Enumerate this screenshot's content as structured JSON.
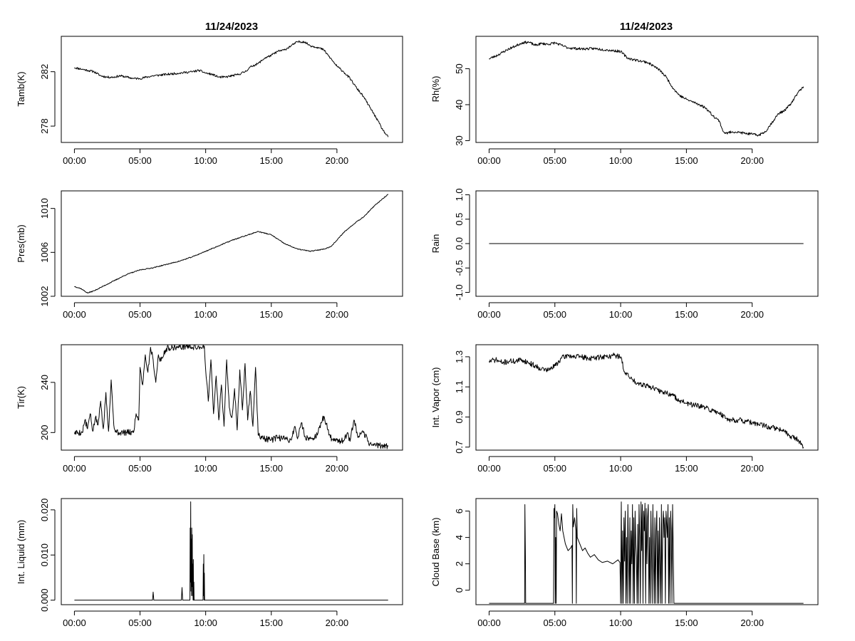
{
  "figure": {
    "date_title": "11/24/2023"
  },
  "chart_data": [
    {
      "id": "tamb",
      "type": "line",
      "title": "11/24/2023",
      "xlabel": "",
      "ylabel": "Tamb(K)",
      "xlim": [
        -1,
        25
      ],
      "ylim": [
        276.8,
        284.6
      ],
      "x_ticks": [
        0,
        5,
        10,
        15,
        20
      ],
      "x_tick_labels": [
        "00:00",
        "05:00",
        "10:00",
        "15:00",
        "20:00"
      ],
      "y_ticks": [
        278,
        282
      ],
      "y_tick_labels": [
        "278",
        "282"
      ],
      "noise": 0.08,
      "seed": 11,
      "x": [
        0,
        0.5,
        1,
        1.5,
        2,
        2.5,
        3,
        3.5,
        4,
        4.5,
        5,
        6,
        7,
        8,
        9,
        9.5,
        10,
        10.5,
        11,
        11.5,
        12,
        12.5,
        13,
        13.5,
        14,
        14.5,
        15,
        15.5,
        16,
        16.5,
        17,
        17.5,
        18,
        18.5,
        19,
        19.5,
        20,
        20.5,
        21,
        21.5,
        22,
        22.5,
        23,
        23.5,
        23.9
      ],
      "y": [
        282.3,
        282.2,
        282.1,
        282.0,
        281.7,
        281.6,
        281.6,
        281.7,
        281.6,
        281.5,
        281.5,
        281.7,
        281.8,
        281.9,
        282.0,
        282.1,
        281.9,
        281.8,
        281.6,
        281.6,
        281.7,
        281.8,
        282.0,
        282.4,
        282.6,
        283.0,
        283.2,
        283.5,
        283.6,
        283.9,
        284.2,
        284.2,
        283.9,
        283.8,
        283.6,
        283.0,
        282.4,
        282.0,
        281.5,
        280.8,
        280.2,
        279.4,
        278.6,
        277.7,
        277.2
      ]
    },
    {
      "id": "rh",
      "type": "line",
      "title": "11/24/2023",
      "xlabel": "",
      "ylabel": "Rh(%)",
      "xlim": [
        -1,
        25
      ],
      "ylim": [
        29.5,
        59
      ],
      "x_ticks": [
        0,
        5,
        10,
        15,
        20
      ],
      "x_tick_labels": [
        "00:00",
        "05:00",
        "10:00",
        "15:00",
        "20:00"
      ],
      "y_ticks": [
        30,
        40,
        50
      ],
      "y_tick_labels": [
        "30",
        "40",
        "50"
      ],
      "noise": 0.35,
      "seed": 23,
      "x": [
        0,
        0.5,
        1,
        1.5,
        2,
        2.5,
        3,
        3.5,
        4,
        4.5,
        5,
        6,
        7,
        8,
        9,
        10,
        10.5,
        11,
        12,
        12.5,
        13,
        13.5,
        14,
        14.5,
        15,
        16,
        16.5,
        17,
        17.5,
        17.8,
        18,
        18.5,
        19,
        19.5,
        20,
        20.5,
        21,
        21.5,
        22,
        22.5,
        23,
        23.5,
        23.9
      ],
      "y": [
        52.8,
        53.5,
        54.5,
        55.5,
        56.3,
        57.2,
        57.4,
        56.5,
        57.0,
        56.8,
        57.2,
        55.8,
        55.5,
        55.6,
        55.2,
        54.8,
        53.0,
        52.5,
        51.8,
        50.8,
        49.5,
        47.5,
        44.5,
        42.5,
        41.5,
        40.0,
        39.0,
        37.0,
        35.5,
        32.5,
        32.0,
        32.5,
        32.3,
        32.0,
        31.8,
        31.5,
        32.5,
        35.0,
        37.5,
        38.5,
        40.5,
        43.5,
        45.0
      ]
    },
    {
      "id": "pres",
      "type": "line",
      "title": "",
      "xlabel": "",
      "ylabel": "Pres(mb)",
      "xlim": [
        -1,
        25
      ],
      "ylim": [
        1002,
        1011.6
      ],
      "x_ticks": [
        0,
        5,
        10,
        15,
        20
      ],
      "x_tick_labels": [
        "00:00",
        "05:00",
        "10:00",
        "15:00",
        "20:00"
      ],
      "y_ticks": [
        1002,
        1006,
        1010
      ],
      "y_tick_labels": [
        "1002",
        "1006",
        "1010"
      ],
      "noise": 0.04,
      "seed": 37,
      "x": [
        0,
        0.5,
        1,
        1.5,
        2,
        2.5,
        3,
        3.5,
        4,
        4.5,
        5,
        6,
        7,
        8,
        9,
        10,
        11,
        12,
        13,
        13.5,
        14,
        15,
        16,
        17,
        18,
        19,
        19.5,
        20,
        20.5,
        21,
        21.5,
        22,
        22.5,
        23,
        23.5,
        23.9
      ],
      "y": [
        1002.9,
        1002.7,
        1002.3,
        1002.5,
        1002.8,
        1003.1,
        1003.4,
        1003.7,
        1004.0,
        1004.2,
        1004.4,
        1004.6,
        1004.9,
        1005.2,
        1005.6,
        1006.1,
        1006.6,
        1007.1,
        1007.5,
        1007.7,
        1007.9,
        1007.6,
        1006.8,
        1006.3,
        1006.1,
        1006.3,
        1006.5,
        1007.1,
        1007.8,
        1008.3,
        1008.8,
        1009.2,
        1009.8,
        1010.4,
        1010.9,
        1011.3
      ]
    },
    {
      "id": "rain",
      "type": "line",
      "title": "",
      "xlabel": "",
      "ylabel": "Rain",
      "xlim": [
        -1,
        25
      ],
      "ylim": [
        -1.08,
        1.08
      ],
      "x_ticks": [
        0,
        5,
        10,
        15,
        20
      ],
      "x_tick_labels": [
        "00:00",
        "05:00",
        "10:00",
        "15:00",
        "20:00"
      ],
      "y_ticks": [
        -1.0,
        -0.5,
        0.0,
        0.5,
        1.0
      ],
      "y_tick_labels": [
        "-1.0",
        "-0.5",
        "0.0",
        "0.5",
        "1.0"
      ],
      "noise": 0,
      "seed": 1,
      "x": [
        0,
        23.9
      ],
      "y": [
        0,
        0
      ]
    },
    {
      "id": "tir",
      "type": "line",
      "title": "",
      "xlabel": "",
      "ylabel": "Tir(K)",
      "xlim": [
        -1,
        25
      ],
      "ylim": [
        186,
        270
      ],
      "x_ticks": [
        0,
        5,
        10,
        15,
        20
      ],
      "x_tick_labels": [
        "00:00",
        "05:00",
        "10:00",
        "15:00",
        "20:00"
      ],
      "y_ticks": [
        200,
        240
      ],
      "y_tick_labels": [
        "200",
        "240"
      ],
      "noise": 2.5,
      "seed": 5,
      "x": [
        0,
        0.6,
        0.8,
        1.0,
        1.2,
        1.4,
        1.6,
        1.8,
        2.0,
        2.2,
        2.4,
        2.6,
        2.8,
        3.0,
        3.2,
        3.5,
        4.0,
        4.5,
        4.7,
        4.9,
        5.0,
        5.2,
        5.4,
        5.6,
        5.8,
        6.0,
        6.2,
        6.4,
        6.6,
        7.0,
        7.5,
        8.0,
        8.5,
        9.0,
        9.5,
        9.9,
        10.0,
        10.2,
        10.4,
        10.6,
        10.8,
        11.0,
        11.2,
        11.4,
        11.6,
        11.8,
        12.0,
        12.2,
        12.4,
        12.6,
        12.8,
        13.0,
        13.2,
        13.4,
        13.6,
        13.8,
        14.0,
        14.5,
        15.0,
        15.5,
        16.0,
        16.5,
        16.8,
        17.0,
        17.3,
        17.6,
        18.0,
        18.5,
        19.0,
        19.5,
        20.0,
        20.5,
        20.8,
        21.0,
        21.3,
        21.6,
        22.0,
        22.5,
        23.0,
        23.9
      ],
      "y": [
        200,
        200,
        210,
        203,
        215,
        201,
        212,
        206,
        225,
        203,
        232,
        201,
        242,
        206,
        200,
        200,
        200,
        200,
        215,
        210,
        252,
        238,
        262,
        248,
        268,
        258,
        240,
        262,
        257,
        267,
        268,
        268,
        269,
        268,
        268,
        269,
        250,
        225,
        258,
        215,
        245,
        210,
        238,
        205,
        258,
        220,
        212,
        235,
        202,
        250,
        218,
        255,
        210,
        233,
        205,
        252,
        198,
        195,
        194,
        196,
        195,
        194,
        205,
        195,
        208,
        196,
        195,
        198,
        213,
        196,
        194,
        193,
        200,
        193,
        210,
        196,
        200,
        191,
        190,
        189
      ]
    },
    {
      "id": "vapor",
      "type": "line",
      "title": "",
      "xlabel": "",
      "ylabel": "Int. Vapor (cm)",
      "xlim": [
        -1,
        25
      ],
      "ylim": [
        0.68,
        1.38
      ],
      "x_ticks": [
        0,
        5,
        10,
        15,
        20
      ],
      "x_tick_labels": [
        "00:00",
        "05:00",
        "10:00",
        "15:00",
        "20:00"
      ],
      "y_ticks": [
        0.7,
        0.9,
        1.1,
        1.3
      ],
      "y_tick_labels": [
        "0.7",
        "0.9",
        "1.1",
        "1.3"
      ],
      "noise": 0.018,
      "seed": 71,
      "x": [
        0,
        0.5,
        1,
        1.5,
        2,
        2.5,
        3,
        3.5,
        4,
        4.5,
        5,
        5.5,
        6,
        6.5,
        7,
        7.5,
        8,
        8.5,
        9,
        9.5,
        10,
        10.3,
        10.6,
        11,
        11.5,
        12,
        12.5,
        13,
        13.5,
        14,
        14.5,
        15,
        15.5,
        16,
        16.5,
        17,
        17.5,
        18,
        18.5,
        19,
        19.5,
        20,
        20.5,
        21,
        21.5,
        22,
        22.5,
        23,
        23.5,
        23.9
      ],
      "y": [
        1.27,
        1.28,
        1.26,
        1.27,
        1.27,
        1.28,
        1.26,
        1.24,
        1.22,
        1.21,
        1.24,
        1.29,
        1.31,
        1.3,
        1.3,
        1.29,
        1.29,
        1.3,
        1.3,
        1.31,
        1.3,
        1.2,
        1.17,
        1.14,
        1.12,
        1.11,
        1.09,
        1.07,
        1.06,
        1.04,
        1.01,
        0.99,
        0.98,
        0.97,
        0.96,
        0.94,
        0.93,
        0.89,
        0.88,
        0.88,
        0.87,
        0.86,
        0.85,
        0.84,
        0.83,
        0.82,
        0.8,
        0.77,
        0.75,
        0.7
      ]
    },
    {
      "id": "liquid",
      "type": "line",
      "title": "",
      "xlabel": "",
      "ylabel": "Int. Liquid (mm)",
      "xlim": [
        -1,
        25
      ],
      "ylim": [
        -0.001,
        0.0225
      ],
      "x_ticks": [
        0,
        5,
        10,
        15,
        20
      ],
      "x_tick_labels": [
        "00:00",
        "05:00",
        "10:00",
        "15:00",
        "20:00"
      ],
      "y_ticks": [
        0.0,
        0.01,
        0.02
      ],
      "y_tick_labels": [
        "0.000",
        "0.010",
        "0.020"
      ],
      "noise": 0,
      "seed": 1,
      "x": [
        0,
        5.95,
        6.0,
        6.05,
        8.15,
        8.2,
        8.25,
        8.8,
        8.82,
        8.84,
        8.86,
        8.88,
        8.9,
        8.92,
        8.94,
        8.96,
        8.98,
        9.0,
        9.02,
        9.04,
        9.06,
        9.08,
        9.1,
        9.12,
        9.14,
        9.8,
        9.82,
        9.84,
        9.86,
        9.88,
        9.9,
        9.92,
        23.9
      ],
      "y": [
        0,
        0,
        0.0018,
        0,
        0,
        0.0028,
        0,
        0,
        0.016,
        0.004,
        0.0218,
        0.002,
        0.0135,
        0.001,
        0.016,
        0.003,
        0.0145,
        0.001,
        0.008,
        0.0,
        0.009,
        0.0,
        0.004,
        0.0,
        0,
        0,
        0.008,
        0.001,
        0.0101,
        0.0,
        0.006,
        0,
        0
      ]
    },
    {
      "id": "cloudbase",
      "type": "line",
      "title": "",
      "xlabel": "",
      "ylabel": "Cloud Base (km)",
      "xlim": [
        -1,
        25
      ],
      "ylim": [
        -1.1,
        6.95
      ],
      "x_ticks": [
        0,
        5,
        10,
        15,
        20
      ],
      "x_tick_labels": [
        "00:00",
        "05:00",
        "10:00",
        "15:00",
        "20:00"
      ],
      "y_ticks": [
        0,
        2,
        4,
        6
      ],
      "y_tick_labels": [
        "0",
        "2",
        "4",
        "6"
      ],
      "noise": 0,
      "seed": 1,
      "x": [
        0,
        2.7,
        2.72,
        2.76,
        2.78,
        4.9,
        4.93,
        4.96,
        5.0,
        5.03,
        5.06,
        5.1,
        5.13,
        5.2,
        5.3,
        5.4,
        5.5,
        5.6,
        5.8,
        6.0,
        6.2,
        6.3,
        6.33,
        6.36,
        6.4,
        6.5,
        6.6,
        6.63,
        6.66,
        6.7,
        6.9,
        7.1,
        7.3,
        7.5,
        7.7,
        8.0,
        8.3,
        8.6,
        9.0,
        9.4,
        9.8,
        9.95,
        10.0,
        10.05,
        10.1,
        10.15,
        10.2,
        10.25,
        10.3,
        10.35,
        10.4,
        10.45,
        10.5,
        10.55,
        10.6,
        10.65,
        10.7,
        10.75,
        10.8,
        10.85,
        10.9,
        10.95,
        11.0,
        11.05,
        11.1,
        11.15,
        11.2,
        11.25,
        11.3,
        11.35,
        11.4,
        11.45,
        11.5,
        11.55,
        11.6,
        11.65,
        11.7,
        11.75,
        11.8,
        11.85,
        11.9,
        11.95,
        12.0,
        12.05,
        12.1,
        12.15,
        12.2,
        12.25,
        12.3,
        12.35,
        12.4,
        12.45,
        12.5,
        12.55,
        12.6,
        12.65,
        12.7,
        12.75,
        12.8,
        12.85,
        12.9,
        12.95,
        13.0,
        13.05,
        13.1,
        13.15,
        13.2,
        13.25,
        13.3,
        13.35,
        13.4,
        13.45,
        13.5,
        13.55,
        13.6,
        13.65,
        13.7,
        13.75,
        13.8,
        13.85,
        13.9,
        13.95,
        14.0,
        14.05,
        14.1,
        23.9
      ],
      "y": [
        -1,
        -1,
        6.5,
        2.5,
        -1,
        -1,
        6.2,
        5.5,
        6.5,
        -1,
        4.0,
        -1,
        6.0,
        5.8,
        5.0,
        4.5,
        5.8,
        4.5,
        3.5,
        3.0,
        3.2,
        3.4,
        -1,
        6.5,
        4.8,
        5.5,
        4.5,
        -1,
        6.2,
        4.0,
        3.5,
        3.0,
        3.2,
        2.8,
        2.5,
        2.7,
        2.3,
        2.1,
        2.2,
        2.0,
        2.3,
        2.1,
        -1,
        6.7,
        -1,
        4.5,
        -1,
        5.5,
        2.2,
        6.0,
        -1,
        4.0,
        -1,
        6.5,
        2.5,
        -1,
        5.5,
        -1,
        4.5,
        2.0,
        6.5,
        -1,
        5.5,
        -1,
        6.0,
        3.5,
        2.5,
        -1,
        5.0,
        -1,
        6.5,
        4.0,
        -1,
        6.7,
        3.0,
        6.5,
        -1,
        6.0,
        4.5,
        6.6,
        -1,
        6.2,
        2.0,
        5.5,
        6.5,
        -1,
        4.0,
        -1,
        6.0,
        3.0,
        -1,
        6.5,
        2.5,
        -1,
        5.5,
        -1,
        4.5,
        6.0,
        -1,
        4.5,
        -1,
        5.5,
        2.0,
        -1,
        6.5,
        -1,
        5.0,
        6.0,
        4.0,
        5.5,
        -1,
        6.0,
        5.0,
        4.0,
        6.5,
        -1,
        5.5,
        -1,
        6.0,
        4.5,
        -1,
        6.5,
        3.0,
        -1,
        -1,
        -1
      ]
    }
  ]
}
